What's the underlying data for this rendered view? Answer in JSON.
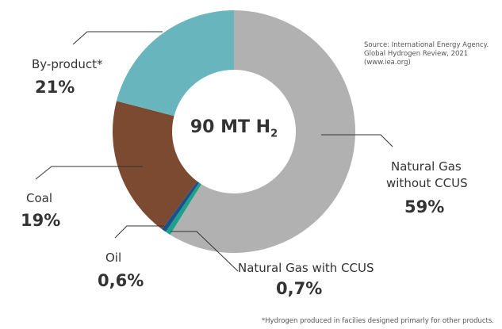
{
  "chart_data": {
    "type": "pie",
    "donut": true,
    "center_label": "90 MT H",
    "center_label_subscript": "2",
    "slices": [
      {
        "name": "Natural Gas without CCUS",
        "label_line1": "Natural Gas",
        "label_line2": "without CCUS",
        "value": 59,
        "value_label": "59%",
        "color": "#b1b1b1"
      },
      {
        "name": "Natural Gas with CCUS",
        "value": 0.7,
        "value_label": "0,7%",
        "color": "#1aa38a"
      },
      {
        "name": "Oil",
        "value": 0.6,
        "value_label": "0,6%",
        "color": "#1c4f8d"
      },
      {
        "name": "Coal",
        "value": 19,
        "value_label": "19%",
        "color": "#7c4a31"
      },
      {
        "name": "By-product*",
        "value": 21,
        "value_label": "21%",
        "color": "#69b5bd"
      }
    ],
    "source": [
      "Source: International Energy Agency.",
      "Global Hydrogen Review, 2021",
      "(www.iea.org)"
    ],
    "footnote": "*Hydrogen produced in facilies designed primarly for other products."
  }
}
